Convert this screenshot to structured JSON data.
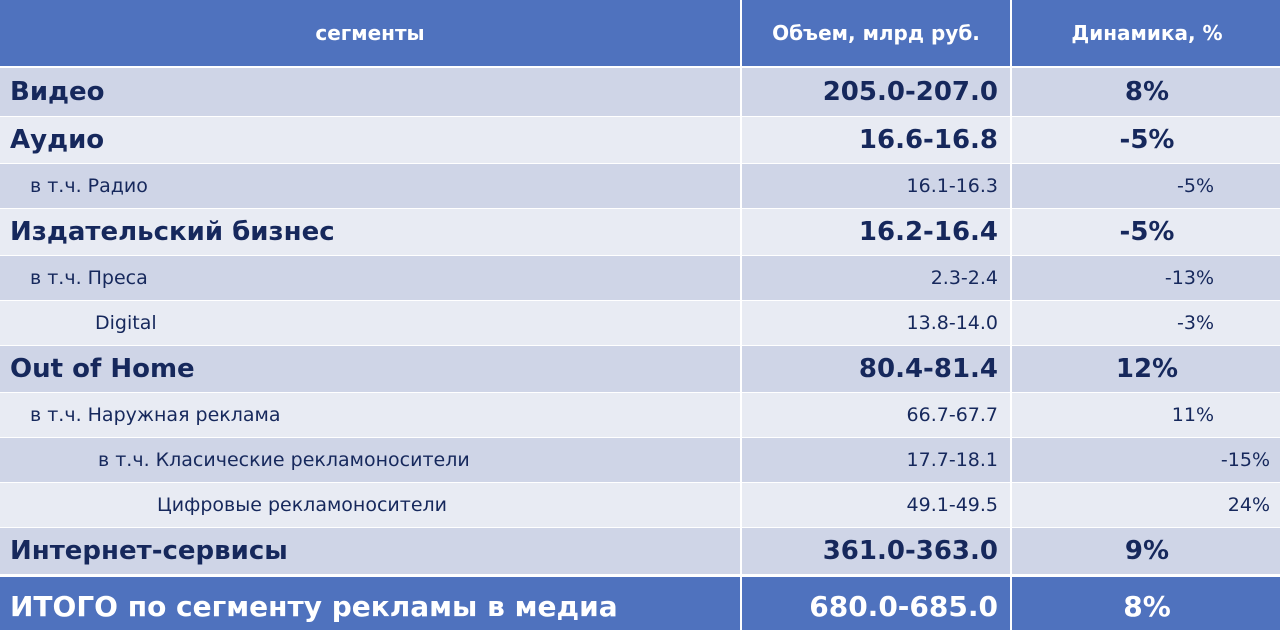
{
  "table": {
    "header": [
      "сегменты",
      "Объем, млрд руб.",
      "Динамика, %"
    ],
    "rows": [
      [
        "Видео",
        "205.0-207.0",
        "8%"
      ],
      [
        "Аудио",
        "16.6-16.8",
        "-5%"
      ],
      [
        "в т.ч. Радио",
        "16.1-16.3",
        "-5%"
      ],
      [
        "Издательский бизнес",
        "16.2-16.4",
        "-5%"
      ],
      [
        "в т.ч. Преса",
        "2.3-2.4",
        "-13%"
      ],
      [
        "Digital",
        "13.8-14.0",
        "-3%"
      ],
      [
        "Out of Home",
        "80.4-81.4",
        "12%"
      ],
      [
        "в т.ч. Наружная реклама",
        "66.7-67.7",
        "11%"
      ],
      [
        "в т.ч. Класические рекламоносители",
        "17.7-18.1",
        "-15%"
      ],
      [
        "Цифровые рекламоносители",
        "49.1-49.5",
        "24%"
      ],
      [
        "Интернет-сервисы",
        "361.0-363.0",
        "9%"
      ],
      [
        "ИТОГО по сегменту рекламы в медиа",
        "680.0-685.0",
        "8%"
      ]
    ]
  }
}
